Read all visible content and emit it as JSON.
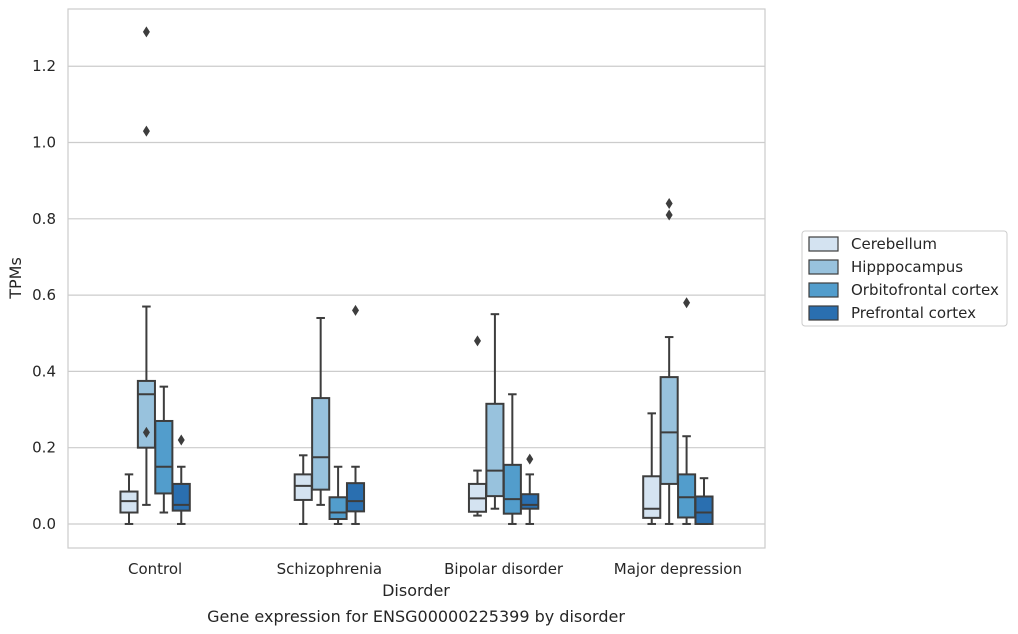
{
  "chart_data": {
    "type": "box",
    "xlabel": "Disorder",
    "ylabel": "TPMs",
    "caption": "Gene expression for ENSG00000225399 by disorder",
    "ylim": [
      -0.063,
      1.35
    ],
    "yticks": [
      0.0,
      0.2,
      0.4,
      0.6,
      0.8,
      1.0,
      1.2
    ],
    "ytick_labels": [
      "0.0",
      "0.2",
      "0.4",
      "0.6",
      "0.8",
      "1.0",
      "1.2"
    ],
    "grid": "horizontal",
    "legend_position": "right",
    "categories": [
      "Control",
      "Schizophrenia",
      "Bipolar disorder",
      "Major depression"
    ],
    "series": [
      {
        "name": "Cerebellum",
        "color": "#d4e3f1",
        "boxes": [
          {
            "whisker_low": 0.0,
            "q1": 0.03,
            "median": 0.06,
            "q3": 0.085,
            "whisker_high": 0.13,
            "outliers": []
          },
          {
            "whisker_low": 0.0,
            "q1": 0.063,
            "median": 0.1,
            "q3": 0.13,
            "whisker_high": 0.18,
            "outliers": []
          },
          {
            "whisker_low": 0.022,
            "q1": 0.032,
            "median": 0.067,
            "q3": 0.105,
            "whisker_high": 0.14,
            "outliers": [
              0.48
            ]
          },
          {
            "whisker_low": 0.0,
            "q1": 0.016,
            "median": 0.04,
            "q3": 0.125,
            "whisker_high": 0.29,
            "outliers": []
          }
        ]
      },
      {
        "name": "Hipppocampus",
        "color": "#98c2dd",
        "boxes": [
          {
            "whisker_low": 0.05,
            "q1": 0.2,
            "median": 0.34,
            "q3": 0.375,
            "whisker_high": 0.57,
            "outliers": [
              0.24,
              1.03,
              1.29
            ]
          },
          {
            "whisker_low": 0.05,
            "q1": 0.09,
            "median": 0.175,
            "q3": 0.33,
            "whisker_high": 0.54,
            "outliers": []
          },
          {
            "whisker_low": 0.04,
            "q1": 0.073,
            "median": 0.14,
            "q3": 0.315,
            "whisker_high": 0.55,
            "outliers": []
          },
          {
            "whisker_low": 0.0,
            "q1": 0.105,
            "median": 0.24,
            "q3": 0.385,
            "whisker_high": 0.49,
            "outliers": [
              0.81,
              0.84
            ]
          }
        ]
      },
      {
        "name": "Orbitofrontal cortex",
        "color": "#529dcc",
        "boxes": [
          {
            "whisker_low": 0.03,
            "q1": 0.08,
            "median": 0.15,
            "q3": 0.27,
            "whisker_high": 0.36,
            "outliers": []
          },
          {
            "whisker_low": 0.0,
            "q1": 0.013,
            "median": 0.03,
            "q3": 0.07,
            "whisker_high": 0.15,
            "outliers": []
          },
          {
            "whisker_low": 0.0,
            "q1": 0.027,
            "median": 0.065,
            "q3": 0.155,
            "whisker_high": 0.34,
            "outliers": []
          },
          {
            "whisker_low": 0.0,
            "q1": 0.017,
            "median": 0.07,
            "q3": 0.13,
            "whisker_high": 0.23,
            "outliers": [
              0.58
            ]
          }
        ]
      },
      {
        "name": "Prefrontal cortex",
        "color": "#2a6fb0",
        "boxes": [
          {
            "whisker_low": 0.0,
            "q1": 0.035,
            "median": 0.05,
            "q3": 0.105,
            "whisker_high": 0.15,
            "outliers": [
              0.22
            ]
          },
          {
            "whisker_low": 0.0,
            "q1": 0.033,
            "median": 0.06,
            "q3": 0.107,
            "whisker_high": 0.15,
            "outliers": [
              0.56
            ]
          },
          {
            "whisker_low": 0.0,
            "q1": 0.04,
            "median": 0.05,
            "q3": 0.078,
            "whisker_high": 0.13,
            "outliers": [
              0.17
            ]
          },
          {
            "whisker_low": 0.0,
            "q1": 0.0,
            "median": 0.03,
            "q3": 0.072,
            "whisker_high": 0.12,
            "outliers": []
          }
        ]
      }
    ]
  }
}
